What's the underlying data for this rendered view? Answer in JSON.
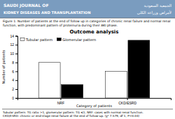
{
  "chart_data": {
    "type": "bar",
    "title": "Outcome analysis",
    "subtitle": "Figure 1: Number of patients at the end of follow up in categories of chronic renal failure and normal renal function, with predominant pattern of proteinuria during their AKI phase.",
    "xlabel": "Category of patients",
    "ylabel": "Number of patients",
    "categories": [
      "NRF",
      "CKD/ESRD"
    ],
    "series": [
      {
        "name": "Tubular pattern",
        "color": "white",
        "values": [
          8,
          6
        ]
      },
      {
        "name": "Glomerular pattern",
        "color": "black",
        "values": [
          3,
          13
        ]
      }
    ],
    "ylim": [
      0,
      14
    ],
    "yticks": [
      0,
      2,
      4,
      6,
      8,
      10,
      12,
      14
    ],
    "grid": false,
    "legend": "upper left",
    "annotations": [
      "SAUDI JOURNAL OF",
      "KIDNEY DISEASES AND TRANSPLANTATION",
      "الجمعية السعودية",
      "لأمراض وزراعة الكلى",
      "Tubular pattern: TG ratio >1, glomerular pattern: TG ≤1; NRF: cases with normal renal function.",
      "CKD/ESRD: chronic or end-stage renal failure at the end of follow-up. (χ² 7.579, df 1, P<0.04)"
    ]
  }
}
